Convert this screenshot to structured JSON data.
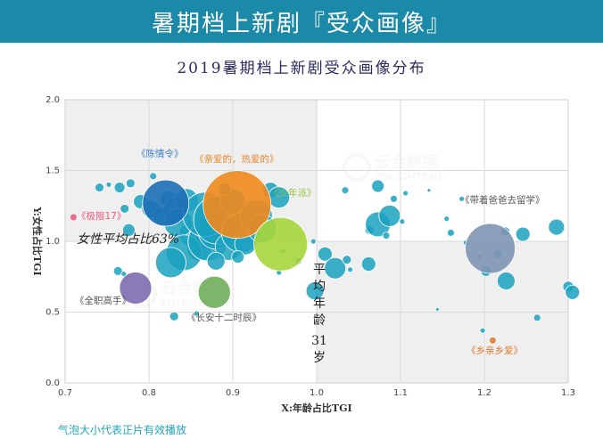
{
  "header": {
    "banner_title": "暑期档上新剧『受众画像』"
  },
  "footnote": "气泡大小代表正片有效播放",
  "chart_data": {
    "type": "scatter",
    "title": "2019暑期档上新剧受众画像分布",
    "xlabel": "X:年龄占比TGI",
    "ylabel": "Y:女性占比TGI",
    "xlim": [
      0.7,
      1.3
    ],
    "ylim": [
      0.0,
      2.0
    ],
    "x_ticks": [
      "0.7",
      "0.8",
      "0.9",
      "1.0",
      "1.1",
      "1.2",
      "1.3"
    ],
    "y_ticks": [
      "0.0",
      "0.5",
      "1.0",
      "1.5",
      "2.0"
    ],
    "grid": true,
    "reference_lines": {
      "female_avg": {
        "y": 1.0,
        "label": "女性平均占比63%"
      },
      "age_avg": {
        "x": 1.0,
        "label_chars": [
          "平",
          "均",
          "年",
          "龄",
          "31",
          "岁"
        ]
      }
    },
    "colors": {
      "default_bubble": "#1aa1bf",
      "chenqingling": "#1c6fb5",
      "qinaide": "#f08a1c",
      "shaonianpai": "#a6d63c",
      "daizhe": "#7f95b3",
      "changan": "#6fae5a",
      "quanzhi": "#7b6db0",
      "jixian": "#ee5a7e",
      "xiangqin": "#e07b36",
      "grid": "#d9d9d9",
      "shade": "#efefef"
    },
    "labeled_series": [
      {
        "name": "《陈情令》",
        "x": 0.82,
        "y": 1.27,
        "size": 26,
        "color_key": "chenqingling",
        "label_color": "#3d7fc6"
      },
      {
        "name": "《亲爱的，热爱的》",
        "x": 0.905,
        "y": 1.26,
        "size": 38,
        "color_key": "qinaide",
        "label_color": "#e8872a"
      },
      {
        "name": "《少年派》",
        "x": 0.957,
        "y": 0.98,
        "size": 30,
        "color_key": "shaonianpai",
        "label_color": "#97c23c"
      },
      {
        "name": "《带着爸爸去留学》",
        "x": 1.207,
        "y": 0.95,
        "size": 28,
        "color_key": "daizhe",
        "label_color": "#555555"
      },
      {
        "name": "《极限17》",
        "x": 0.71,
        "y": 1.17,
        "size": 4,
        "color_key": "jixian",
        "label_color": "#ee5a7e"
      },
      {
        "name": "《全职高手》",
        "x": 0.784,
        "y": 0.67,
        "size": 18,
        "color_key": "quanzhi",
        "label_color": "#555555"
      },
      {
        "name": "《长安十二时辰》",
        "x": 0.878,
        "y": 0.64,
        "size": 18,
        "color_key": "changan",
        "label_color": "#555555"
      },
      {
        "name": "《乡亲乡爱》",
        "x": 1.21,
        "y": 0.3,
        "size": 4,
        "color_key": "xiangqin",
        "label_color": "#e07b36"
      }
    ],
    "other_points": [
      [
        0.741,
        1.38,
        5
      ],
      [
        0.752,
        1.4,
        3
      ],
      [
        0.765,
        1.38,
        6
      ],
      [
        0.778,
        1.41,
        5
      ],
      [
        0.771,
        1.23,
        5
      ],
      [
        0.776,
        1.08,
        7
      ],
      [
        0.763,
        0.79,
        5
      ],
      [
        0.77,
        0.77,
        3
      ],
      [
        0.79,
        1.28,
        8
      ],
      [
        0.802,
        1.23,
        10
      ],
      [
        0.805,
        1.46,
        4
      ],
      [
        0.815,
        1.18,
        10
      ],
      [
        0.823,
        1.3,
        9
      ],
      [
        0.833,
        1.22,
        15
      ],
      [
        0.845,
        1.29,
        13
      ],
      [
        0.852,
        1.05,
        15
      ],
      [
        0.86,
        0.95,
        14
      ],
      [
        0.835,
        1.13,
        16
      ],
      [
        0.842,
        0.92,
        20
      ],
      [
        0.826,
        0.85,
        17
      ],
      [
        0.87,
        1.0,
        22
      ],
      [
        0.88,
        1.07,
        20
      ],
      [
        0.867,
        1.19,
        25
      ],
      [
        0.882,
        1.15,
        27
      ],
      [
        0.895,
        0.96,
        15
      ],
      [
        0.91,
        1.06,
        22
      ],
      [
        0.915,
        0.98,
        12
      ],
      [
        0.928,
        1.18,
        18
      ],
      [
        0.935,
        1.09,
        16
      ],
      [
        0.9,
        1.28,
        14
      ],
      [
        0.88,
        0.86,
        10
      ],
      [
        0.906,
        0.89,
        7
      ],
      [
        0.89,
        1.37,
        7
      ],
      [
        0.945,
        1.36,
        9
      ],
      [
        0.955,
        1.31,
        12
      ],
      [
        0.955,
        0.78,
        3
      ],
      [
        0.96,
        0.93,
        3
      ],
      [
        0.978,
        0.86,
        4
      ],
      [
        0.996,
        1.0,
        3
      ],
      [
        1.01,
        0.91,
        8
      ],
      [
        1.022,
        0.81,
        12
      ],
      [
        0.998,
        0.65,
        10
      ],
      [
        1.036,
        0.87,
        5
      ],
      [
        1.04,
        0.8,
        3
      ],
      [
        1.034,
        1.36,
        4
      ],
      [
        1.062,
        0.84,
        8
      ],
      [
        1.063,
        1.08,
        5
      ],
      [
        1.073,
        1.12,
        14
      ],
      [
        1.087,
        1.18,
        12
      ],
      [
        1.102,
        1.14,
        3
      ],
      [
        1.073,
        1.39,
        7
      ],
      [
        1.092,
        1.3,
        4
      ],
      [
        1.106,
        1.34,
        3
      ],
      [
        1.083,
        1.04,
        4
      ],
      [
        1.155,
        1.16,
        3
      ],
      [
        1.173,
        1.3,
        3
      ],
      [
        1.16,
        1.06,
        4
      ],
      [
        1.178,
        0.99,
        3
      ],
      [
        1.194,
        0.89,
        3
      ],
      [
        1.202,
        0.79,
        6
      ],
      [
        1.216,
        0.91,
        5
      ],
      [
        1.226,
        0.72,
        10
      ],
      [
        1.225,
        1.07,
        5
      ],
      [
        1.246,
        1.05,
        8
      ],
      [
        1.263,
        0.46,
        4
      ],
      [
        1.286,
        1.1,
        9
      ],
      [
        1.3,
        0.68,
        6
      ],
      [
        1.305,
        0.64,
        8
      ],
      [
        1.144,
        0.52,
        2
      ],
      [
        1.198,
        0.37,
        3
      ],
      [
        1.134,
        1.36,
        2
      ],
      [
        0.83,
        0.47,
        5
      ],
      [
        0.857,
        0.49,
        3
      ]
    ]
  }
}
